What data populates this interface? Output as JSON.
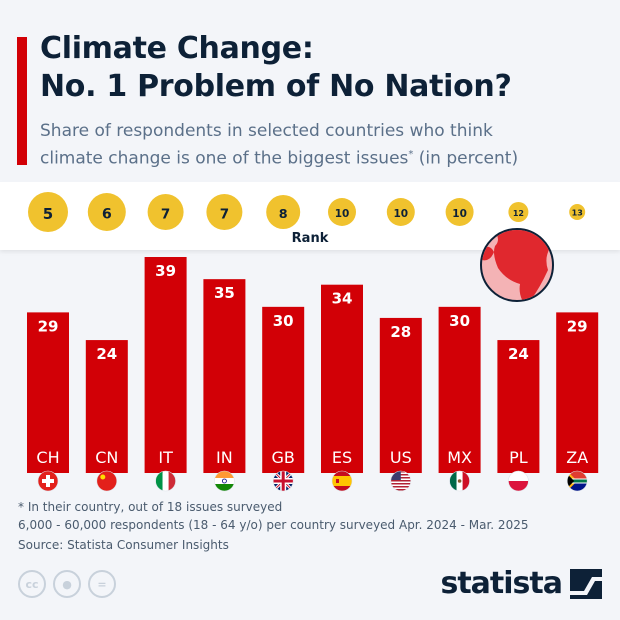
{
  "header": {
    "title_line1": "Climate Change:",
    "title_line2": "No. 1 Problem of No Nation?",
    "subtitle_line1": "Share of respondents in selected countries who think",
    "subtitle_line2": "climate change is one of the biggest issues",
    "subtitle_sup": "*",
    "subtitle_tail": " (in percent)"
  },
  "chart_data": {
    "type": "bar",
    "categories": [
      "CH",
      "CN",
      "IT",
      "IN",
      "GB",
      "ES",
      "US",
      "MX",
      "PL",
      "ZA"
    ],
    "values": [
      29,
      24,
      39,
      35,
      30,
      34,
      28,
      30,
      24,
      29
    ],
    "ranks": [
      5,
      6,
      7,
      7,
      8,
      10,
      10,
      10,
      12,
      13
    ],
    "rank_label": "Rank",
    "ylim": [
      0,
      40
    ],
    "bar_color": "#d20006",
    "rank_color": "#f0c22e",
    "flags": [
      "flag-switzerland",
      "flag-china",
      "flag-italy",
      "flag-india",
      "flag-united-kingdom",
      "flag-spain",
      "flag-united-states",
      "flag-mexico",
      "flag-poland",
      "flag-south-africa"
    ]
  },
  "footer": {
    "note": "* In their country, out of 18 issues surveyed",
    "sample": "6,000 - 60,000 respondents (18 - 64 y/o) per country surveyed Apr. 2024 - Mar. 2025",
    "source": "Source: Statista Consumer Insights",
    "logo": "statista",
    "license_icons": [
      "cc-icon",
      "by-icon",
      "nd-icon"
    ]
  }
}
